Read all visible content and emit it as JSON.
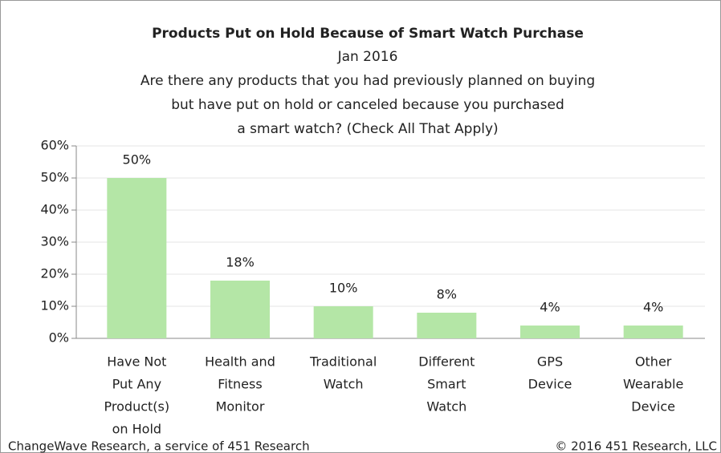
{
  "chart_data": {
    "type": "bar",
    "title": "Products Put on Hold Because of Smart Watch Purchase",
    "subtitle": "Jan 2016",
    "question": [
      "Are there any products that you had previously planned on buying",
      "but have put on hold or canceled because you purchased",
      "a smart watch? (Check All That Apply)"
    ],
    "categories": [
      [
        "Have Not",
        "Put Any",
        "Product(s)",
        "on Hold"
      ],
      [
        "Health and",
        "Fitness",
        "Monitor"
      ],
      [
        "Traditional",
        "Watch"
      ],
      [
        "Different",
        "Smart",
        "Watch"
      ],
      [
        "GPS",
        "Device"
      ],
      [
        "Other",
        "Wearable",
        "Device"
      ]
    ],
    "values": [
      50,
      18,
      10,
      8,
      4,
      4
    ],
    "value_labels": [
      "50%",
      "18%",
      "10%",
      "8%",
      "4%",
      "4%"
    ],
    "color": "#b4e6a6",
    "ylim": [
      0,
      60
    ],
    "yticks": [
      {
        "value": 0,
        "label": "0%"
      },
      {
        "value": 10,
        "label": "10%"
      },
      {
        "value": 20,
        "label": "20%"
      },
      {
        "value": 30,
        "label": "30%"
      },
      {
        "value": 40,
        "label": "40%"
      },
      {
        "value": 50,
        "label": "50%"
      },
      {
        "value": 60,
        "label": "60%"
      }
    ],
    "grid": true,
    "source": "ChangeWave Research, a service of 451 Research",
    "copyright": "© 2016 451 Research, LLC"
  }
}
